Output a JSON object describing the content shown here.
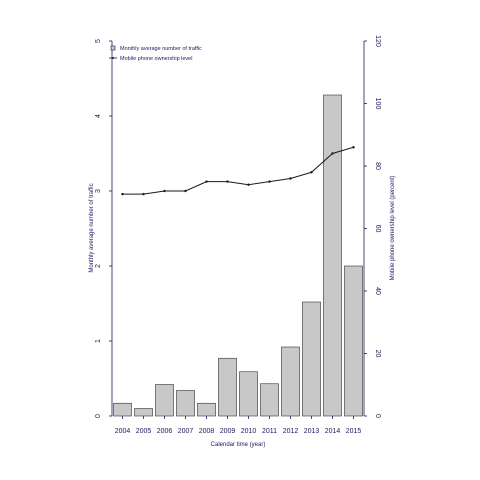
{
  "chart_data": {
    "type": "bar",
    "categories": [
      "2004",
      "2005",
      "2006",
      "2007",
      "2008",
      "2009",
      "2010",
      "2011",
      "2012",
      "2013",
      "2014",
      "2015"
    ],
    "series": [
      {
        "name": "Monthly average number of traffic",
        "type": "bar",
        "axis": "left",
        "color": "#c8c8c8",
        "values": [
          0.17,
          0.1,
          0.42,
          0.34,
          0.17,
          0.77,
          0.59,
          0.43,
          0.92,
          1.52,
          4.28,
          2.0
        ]
      },
      {
        "name": "Mobile phone ownership level",
        "type": "line",
        "axis": "right",
        "color": "#1a1a1a",
        "values": [
          71,
          71,
          72,
          72,
          75,
          75,
          74,
          75,
          76,
          78,
          84,
          86
        ]
      }
    ],
    "xlabel": "Calendar time (year)",
    "ylabel": "Monthly average number of traffic",
    "y2label": "Mobile phone ownership level (percent)",
    "ylim": [
      0,
      5
    ],
    "y2lim": [
      0,
      120
    ],
    "yticks": [
      "0",
      "1",
      "2",
      "3",
      "4",
      "5"
    ],
    "y2ticks": [
      "0",
      "20",
      "40",
      "60",
      "80",
      "100",
      "120"
    ],
    "legend_position": "top-left",
    "grid": false
  }
}
